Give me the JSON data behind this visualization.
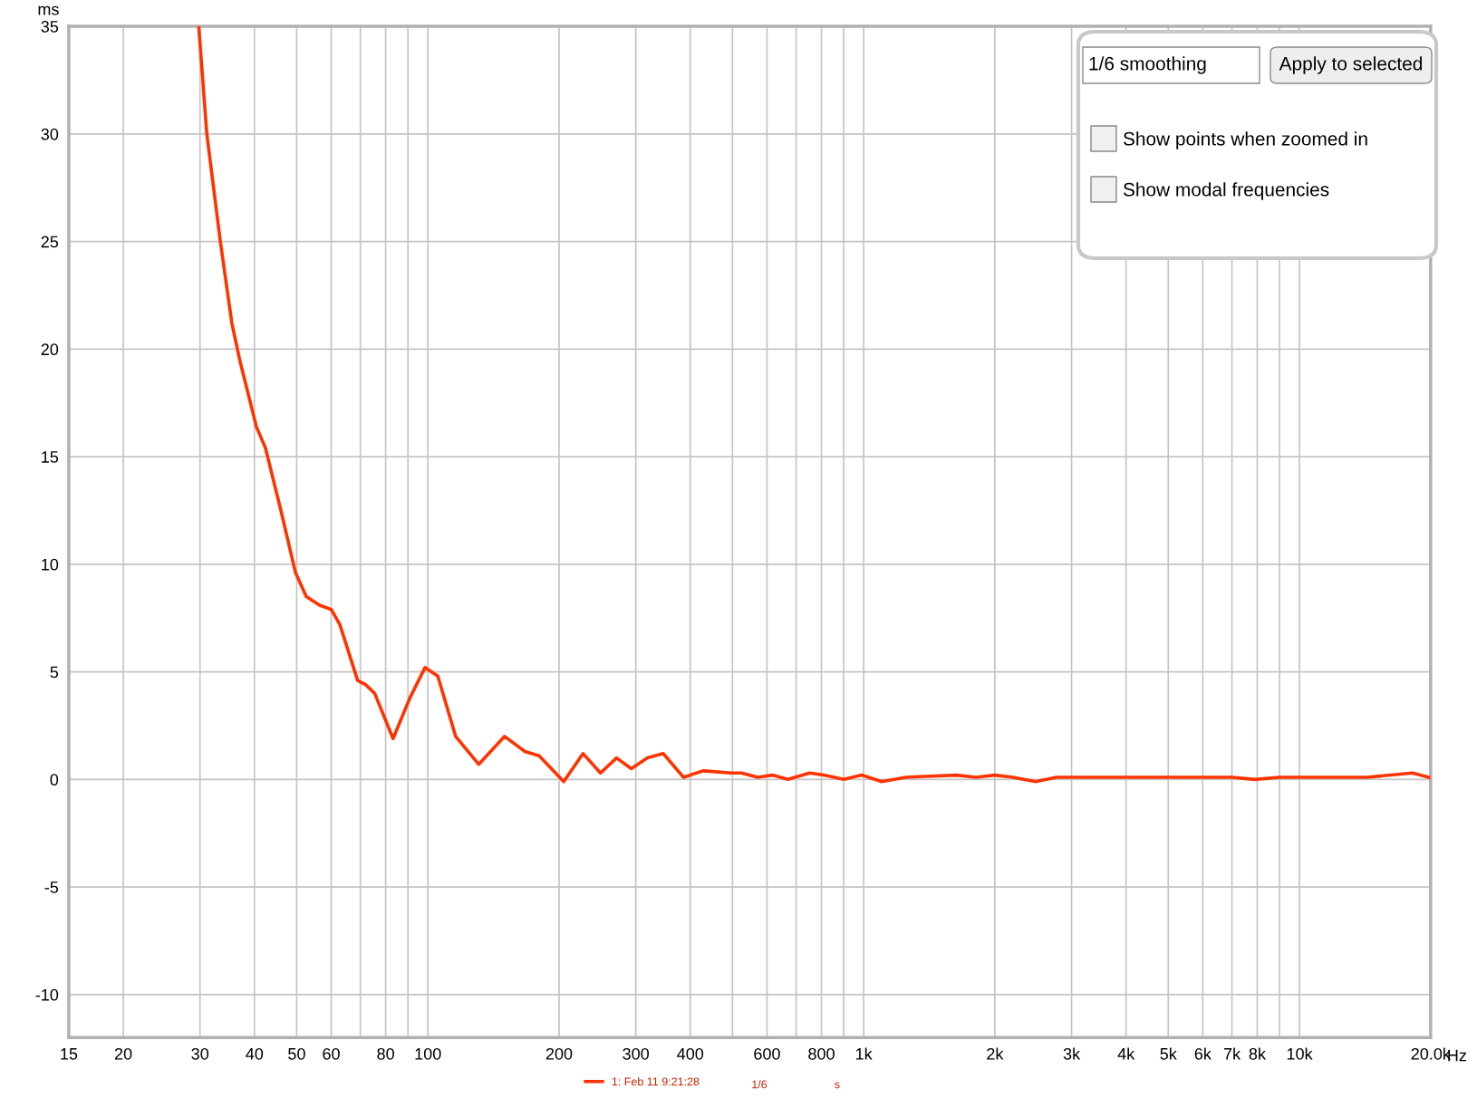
{
  "chart_data": {
    "type": "line",
    "xlabel": "Hz",
    "ylabel": "ms",
    "x": [
      29.8,
      31.1,
      33.4,
      35.5,
      37.0,
      40.4,
      42.4,
      46,
      49.7,
      52.6,
      56.4,
      60,
      62.8,
      69,
      72,
      75.5,
      83.2,
      91,
      98.5,
      105.4,
      115.8,
      130.8,
      150,
      167,
      180,
      205,
      227,
      249,
      271,
      293,
      319,
      347,
      386,
      429,
      497,
      525,
      571,
      617,
      670,
      752,
      810,
      900,
      990,
      1100,
      1250,
      1630,
      1810,
      2000,
      2200,
      2480,
      2770,
      3200,
      3450,
      4000,
      4500,
      5500,
      7000,
      7900,
      9000,
      10000,
      14300,
      18200,
      19800
    ],
    "series": [
      {
        "name": "1: Feb 11 9:21:28",
        "color": "#ff3300",
        "values": [
          35,
          30,
          25,
          21.2,
          19.5,
          16.4,
          15.4,
          12.5,
          9.6,
          8.5,
          8.1,
          7.9,
          7.2,
          4.6,
          4.4,
          4.0,
          1.9,
          3.8,
          5.2,
          4.8,
          2.0,
          0.7,
          2.0,
          1.3,
          1.1,
          -0.1,
          1.2,
          0.3,
          1.0,
          0.5,
          1.0,
          1.2,
          0.1,
          0.4,
          0.3,
          0.3,
          0.1,
          0.2,
          0.0,
          0.3,
          0.2,
          0.0,
          0.2,
          -0.1,
          0.1,
          0.2,
          0.1,
          0.2,
          0.1,
          -0.1,
          0.1,
          0.1,
          0.1,
          0.1,
          0.1,
          0.1,
          0.1,
          0.0,
          0.1,
          0.1,
          0.1,
          0.3,
          0.1
        ]
      }
    ],
    "log": "x",
    "xlim": [
      15,
      20000
    ],
    "ylim": [
      -12,
      35
    ],
    "xticks": [
      15,
      20,
      30,
      40,
      50,
      60,
      {
        "value": 70,
        "label": null
      },
      80,
      {
        "value": 90,
        "label": null
      },
      100,
      200,
      300,
      400,
      {
        "value": 500,
        "label": null
      },
      600,
      {
        "value": 700,
        "label": null
      },
      800,
      {
        "value": 900,
        "label": null
      },
      {
        "value": 1000,
        "label": "1k"
      },
      {
        "value": 2000,
        "label": "2k"
      },
      {
        "value": 3000,
        "label": "3k"
      },
      {
        "value": 4000,
        "label": "4k"
      },
      {
        "value": 5000,
        "label": "5k"
      },
      {
        "value": 6000,
        "label": "6k"
      },
      {
        "value": 7000,
        "label": "7k"
      },
      {
        "value": 8000,
        "label": "8k"
      },
      {
        "value": 9000,
        "label": null
      },
      {
        "value": 10000,
        "label": "10k"
      },
      {
        "value": 20000,
        "label": "20.0k"
      }
    ],
    "yticks": [
      -10,
      -5,
      0,
      5,
      10,
      15,
      20,
      25,
      30,
      35
    ],
    "grid": true,
    "legend": "bottom",
    "marker": "none",
    "line_style": "solid",
    "annotations": [
      "1/6 smoothing",
      "Apply to selected",
      "Show points when zoomed in",
      "Show modal frequencies",
      "1/6",
      "s"
    ]
  }
}
